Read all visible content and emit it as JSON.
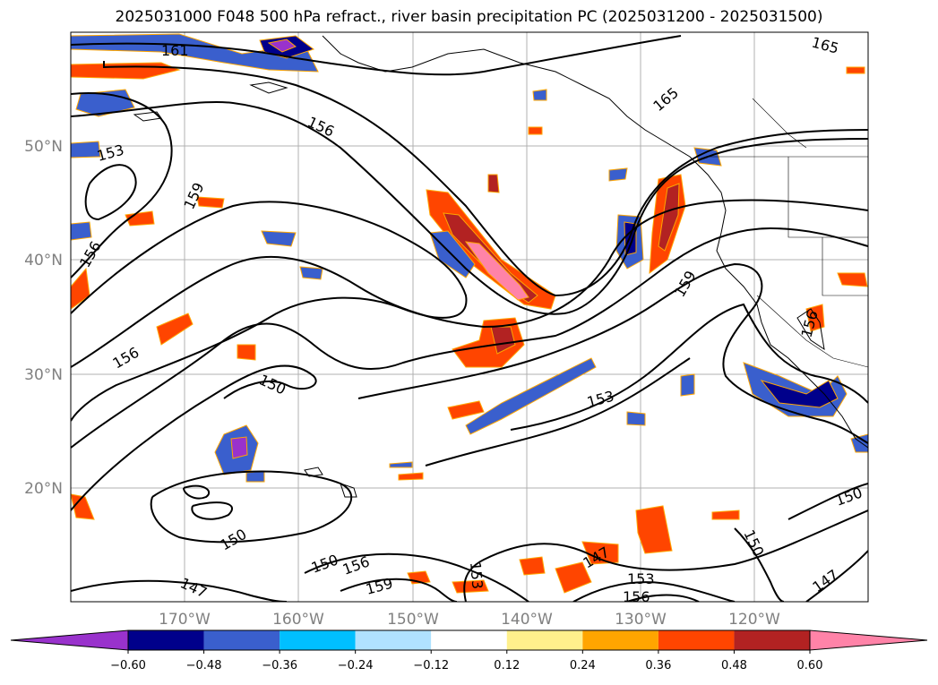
{
  "title": "2025031000 F048 500 hPa refract., river basin precipitation PC (2025031200 - 2025031500)",
  "lat_labels": [
    "50°N",
    "40°N",
    "30°N",
    "20°N"
  ],
  "lon_labels": [
    "170°W",
    "160°W",
    "150°W",
    "140°W",
    "130°W",
    "120°W"
  ],
  "colorbar": {
    "colors": [
      "#9932cc",
      "#00008b",
      "#3a5fcd",
      "#00bfff",
      "#b0e2ff",
      "#ffffff",
      "#fff08c",
      "#ffa500",
      "#ff4500",
      "#b22222",
      "#ff83a8"
    ],
    "ticks": [
      "−0.60",
      "−0.48",
      "−0.36",
      "−0.24",
      "−0.12",
      "0.12",
      "0.24",
      "0.36",
      "0.48",
      "0.60"
    ]
  },
  "contour_labels": [
    "161",
    "165",
    "165",
    "156",
    "153",
    "159",
    "156",
    "159",
    "156",
    "150",
    "153",
    "156",
    "150",
    "150",
    "147",
    "150",
    "156",
    "159",
    "153",
    "147",
    "153",
    "156",
    "150",
    "147",
    "156"
  ]
}
